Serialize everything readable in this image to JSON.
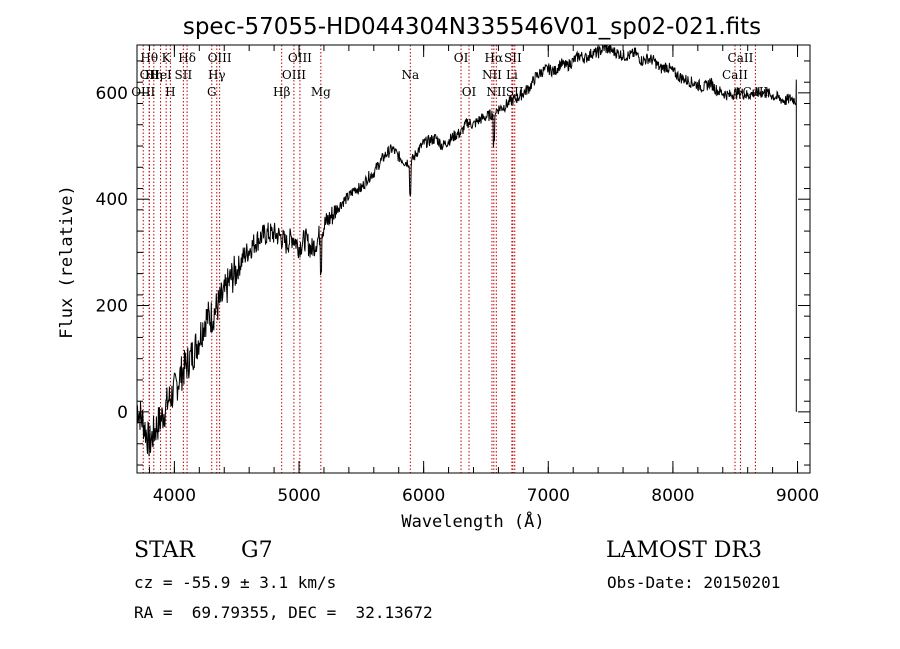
{
  "chart_data": {
    "type": "line",
    "title": "spec-57055-HD044304N335546V01_sp02-021.fits",
    "xlabel": "Wavelength (Å)",
    "ylabel": "Flux (relative)",
    "xlim": [
      3700,
      9100
    ],
    "ylim": [
      -115,
      690
    ],
    "xticks": [
      4000,
      5000,
      6000,
      7000,
      8000,
      9000
    ],
    "yticks": [
      0,
      200,
      400,
      600
    ],
    "x": [
      3700,
      3750,
      3800,
      3850,
      3900,
      3950,
      4000,
      4050,
      4100,
      4150,
      4200,
      4250,
      4300,
      4350,
      4400,
      4450,
      4500,
      4550,
      4600,
      4650,
      4700,
      4750,
      4800,
      4850,
      4900,
      4950,
      5000,
      5050,
      5100,
      5150,
      5200,
      5250,
      5300,
      5350,
      5400,
      5450,
      5500,
      5550,
      5600,
      5650,
      5700,
      5750,
      5800,
      5850,
      5900,
      5950,
      6000,
      6050,
      6100,
      6150,
      6200,
      6250,
      6300,
      6350,
      6400,
      6450,
      6500,
      6550,
      6600,
      6650,
      6700,
      6750,
      6800,
      6850,
      6900,
      6950,
      7000,
      7050,
      7100,
      7150,
      7200,
      7250,
      7300,
      7350,
      7400,
      7450,
      7500,
      7550,
      7600,
      7650,
      7700,
      7750,
      7800,
      7850,
      7900,
      7950,
      8000,
      8050,
      8100,
      8150,
      8200,
      8250,
      8300,
      8350,
      8400,
      8450,
      8500,
      8550,
      8600,
      8650,
      8700,
      8750,
      8800,
      8850,
      8900,
      8950,
      8990
    ],
    "flux": [
      10,
      -20,
      -60,
      -30,
      -10,
      20,
      40,
      70,
      90,
      110,
      140,
      175,
      180,
      200,
      220,
      250,
      265,
      290,
      305,
      320,
      330,
      335,
      335,
      330,
      315,
      330,
      310,
      325,
      305,
      325,
      350,
      365,
      380,
      395,
      405,
      420,
      420,
      440,
      450,
      470,
      485,
      495,
      480,
      470,
      470,
      490,
      505,
      510,
      515,
      500,
      510,
      520,
      525,
      545,
      540,
      550,
      555,
      560,
      570,
      575,
      585,
      590,
      600,
      610,
      630,
      640,
      645,
      640,
      655,
      650,
      660,
      670,
      665,
      675,
      675,
      685,
      680,
      675,
      670,
      670,
      675,
      660,
      665,
      660,
      645,
      650,
      640,
      630,
      625,
      620,
      615,
      610,
      620,
      605,
      600,
      595,
      600,
      600,
      595,
      600,
      600,
      600,
      595,
      590,
      585,
      590,
      585
    ],
    "features": [
      {
        "wl": 3750,
        "row": 2,
        "label": "OIII"
      },
      {
        "wl": 3798,
        "row": 0,
        "label": "Hθ"
      },
      {
        "wl": 3799,
        "row": 1,
        "label": "OII"
      },
      {
        "wl": 3835,
        "row": 1,
        "label": "Hη"
      },
      {
        "wl": 3889,
        "row": 1,
        "label": "HeI"
      },
      {
        "wl": 3934,
        "row": 0,
        "label": "K"
      },
      {
        "wl": 3968,
        "row": 2,
        "label": "H"
      },
      {
        "wl": 4072,
        "row": 1,
        "label": "SII"
      },
      {
        "wl": 4102,
        "row": 0,
        "label": "Hδ"
      },
      {
        "wl": 4300,
        "row": 2,
        "label": "G"
      },
      {
        "wl": 4340,
        "row": 1,
        "label": "Hγ"
      },
      {
        "wl": 4363,
        "row": 0,
        "label": "OIII"
      },
      {
        "wl": 4861,
        "row": 2,
        "label": "Hβ"
      },
      {
        "wl": 4959,
        "row": 1,
        "label": "OIII"
      },
      {
        "wl": 5007,
        "row": 0,
        "label": "OIII"
      },
      {
        "wl": 5175,
        "row": 2,
        "label": "Mg"
      },
      {
        "wl": 5893,
        "row": 1,
        "label": "Na"
      },
      {
        "wl": 6300,
        "row": 0,
        "label": "OI"
      },
      {
        "wl": 6364,
        "row": 2,
        "label": "OI"
      },
      {
        "wl": 6548,
        "row": 1,
        "label": "NII"
      },
      {
        "wl": 6563,
        "row": 0,
        "label": "Hα"
      },
      {
        "wl": 6583,
        "row": 2,
        "label": "NII"
      },
      {
        "wl": 6708,
        "row": 1,
        "label": "Li"
      },
      {
        "wl": 6716,
        "row": 0,
        "label": "SII"
      },
      {
        "wl": 6731,
        "row": 2,
        "label": "SII"
      },
      {
        "wl": 8498,
        "row": 1,
        "label": "CaII"
      },
      {
        "wl": 8542,
        "row": 0,
        "label": "CaII"
      },
      {
        "wl": 8662,
        "row": 2,
        "label": "CaII"
      }
    ]
  },
  "footer": {
    "object_class": "STAR",
    "subclass": "G7",
    "redshift": "cz = -55.9 ± 3.1 km/s",
    "coords": "RA =  69.79355, DEC =  32.13672",
    "survey": "LAMOST DR3",
    "obs_date": "Obs-Date: 20150201"
  }
}
